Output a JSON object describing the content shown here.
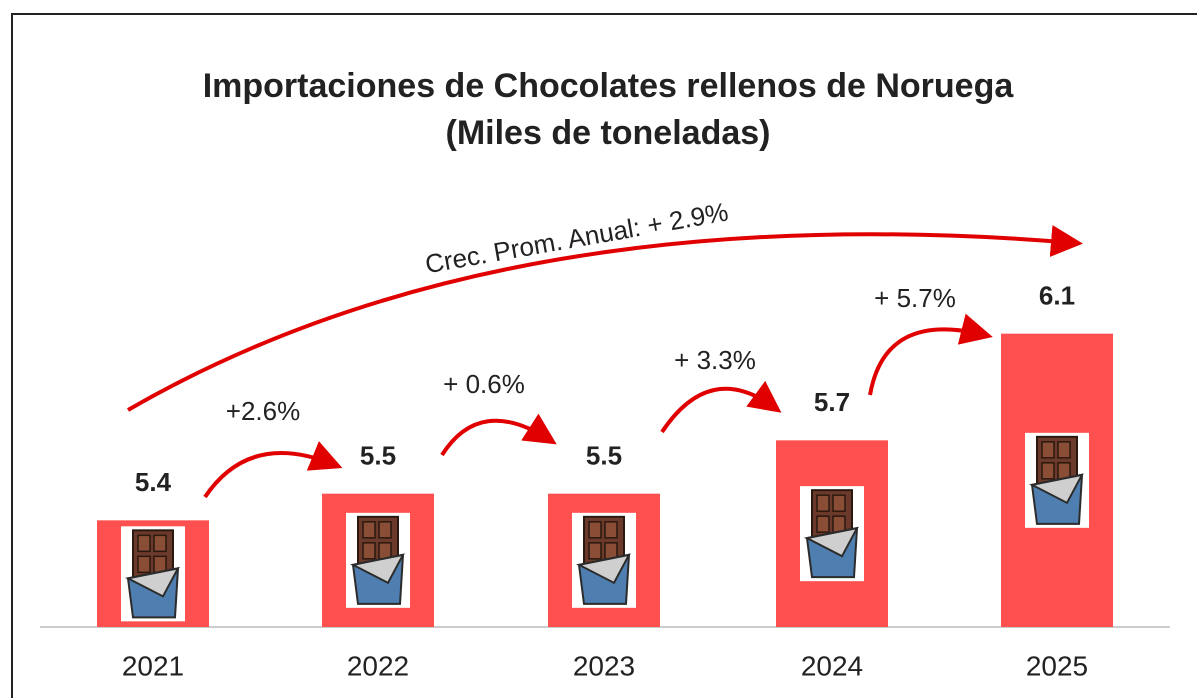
{
  "chart_data": {
    "type": "bar",
    "title": "Importaciones de Chocolates rellenos de Noruega",
    "subtitle": "(Miles de toneladas)",
    "categories": [
      "2021",
      "2022",
      "2023",
      "2024",
      "2025"
    ],
    "values": [
      5.4,
      5.5,
      5.5,
      5.7,
      6.1
    ],
    "color": "#ff5050",
    "ylim": [
      5,
      6.2
    ],
    "annotations": [
      "+2.6%",
      "+ 0.6%",
      "+ 3.3%",
      "+ 5.7%",
      "Crec. Prom. Anual: + 2.9%"
    ]
  }
}
